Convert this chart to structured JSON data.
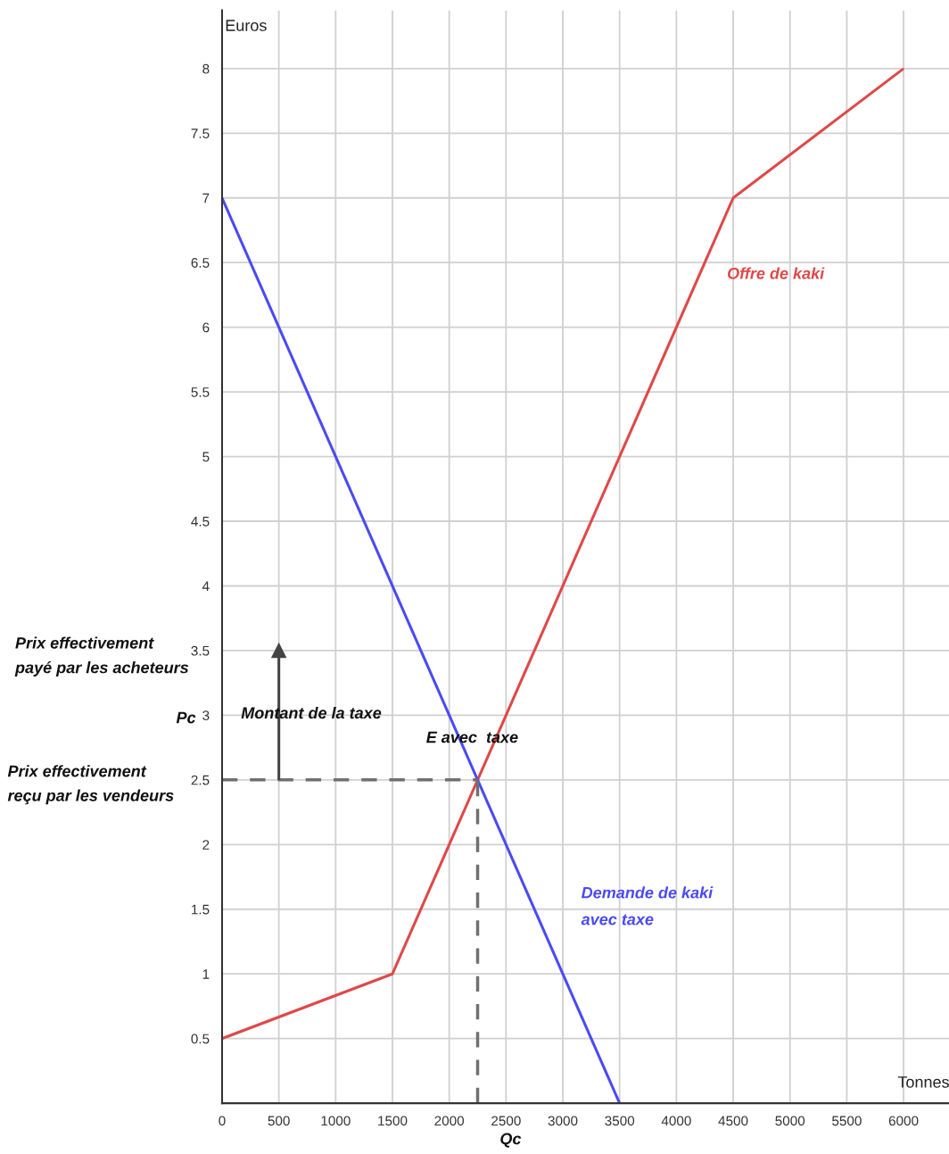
{
  "chart_data": {
    "type": "line",
    "xlabel": "Tonnes",
    "ylabel": "Euros",
    "xlim": [
      0,
      6400
    ],
    "ylim": [
      0,
      8.45
    ],
    "xticks": [
      0,
      500,
      1000,
      1500,
      2000,
      2500,
      3000,
      3500,
      4000,
      4500,
      5000,
      5500,
      6000
    ],
    "yticks": [
      {
        "value": 0,
        "label": null
      },
      0.5,
      1,
      1.5,
      2,
      2.5,
      3,
      3.5,
      4,
      4.5,
      5,
      5.5,
      6,
      6.5,
      7,
      7.5,
      8
    ],
    "grid": true,
    "legend": false,
    "line_style": "solid",
    "series": [
      {
        "name": "Offre de kaki",
        "color": "#e04848",
        "x": [
          0,
          1500,
          4500,
          6000
        ],
        "values": [
          0.5,
          1,
          7,
          8
        ]
      },
      {
        "name": "Demande de kaki\navec taxe",
        "color": "#4a4af5",
        "x": [
          0,
          3500
        ],
        "values": [
          7,
          0
        ]
      },
      {
        "color": "#707070",
        "x": [
          0,
          2250
        ],
        "values": [
          2.5,
          2.5
        ],
        "line_style": "dashed"
      },
      {
        "color": "#707070",
        "x": [
          2250,
          2250
        ],
        "values": [
          0,
          2.5
        ],
        "line_style": "dashed"
      },
      {
        "color": "#444444",
        "x": [
          500,
          500
        ],
        "values": [
          2.5,
          3.5
        ],
        "marker": "triangle"
      }
    ],
    "annotations": [
      "Montant de la taxe",
      "E avec  taxe",
      "Pc",
      "Qc",
      "Prix effectivement\npayé par les acheteurs",
      "Prix effectivement\nreçu par les vendeurs"
    ]
  }
}
